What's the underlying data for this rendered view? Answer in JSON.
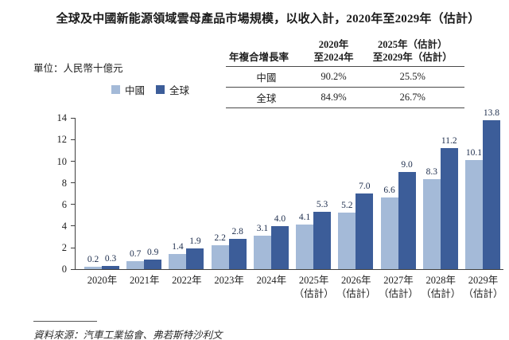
{
  "title": "全球及中國新能源領域雲母產品市場規模，以收入計，2020年至2029年（估計）",
  "unit_label": "單位：人民幣十億元",
  "legend": {
    "china": "中國",
    "global": "全球"
  },
  "colors": {
    "china_bar": "#A4BAD8",
    "global_bar": "#3C5D99",
    "axis": "#3f3f3f"
  },
  "cagr_table": {
    "corner_header": "年複合增長率",
    "col1_header_line1": "2020年",
    "col1_header_line2": "至2024年",
    "col2_header_line1": "2025年（估計）",
    "col2_header_line2": "至2029年（估計）",
    "rows": [
      {
        "label": "中國",
        "period1": "90.2%",
        "period2": "25.5%"
      },
      {
        "label": "全球",
        "period1": "84.9%",
        "period2": "26.7%"
      }
    ]
  },
  "chart_data": {
    "type": "bar",
    "title": "全球及中國新能源領域雲母產品市場規模，以收入計，2020年至2029年（估計）",
    "unit": "人民幣十億元",
    "xlabel": "",
    "ylabel": "",
    "ylim": [
      0,
      14
    ],
    "yticks": [
      0,
      2,
      4,
      6,
      8,
      10,
      12,
      14
    ],
    "grid": false,
    "legend_position": "top-left",
    "categories": [
      {
        "label": "2020年",
        "sub": ""
      },
      {
        "label": "2021年",
        "sub": ""
      },
      {
        "label": "2022年",
        "sub": ""
      },
      {
        "label": "2023年",
        "sub": ""
      },
      {
        "label": "2024年",
        "sub": ""
      },
      {
        "label": "2025年",
        "sub": "（估計）"
      },
      {
        "label": "2026年",
        "sub": "（估計）"
      },
      {
        "label": "2027年",
        "sub": "（估計）"
      },
      {
        "label": "2028年",
        "sub": "（估計）"
      },
      {
        "label": "2029年",
        "sub": "（估計）"
      }
    ],
    "series": [
      {
        "name": "中國",
        "key": "china",
        "color": "#A4BAD8",
        "values": [
          0.2,
          0.7,
          1.4,
          2.2,
          3.1,
          4.1,
          5.2,
          6.6,
          8.3,
          10.1
        ]
      },
      {
        "name": "全球",
        "key": "global",
        "color": "#3C5D99",
        "values": [
          0.3,
          0.9,
          1.9,
          2.8,
          4.0,
          5.3,
          7.0,
          9.0,
          11.2,
          13.8
        ]
      }
    ]
  },
  "source": "資料來源：汽車工業協會、弗若斯特沙利文"
}
